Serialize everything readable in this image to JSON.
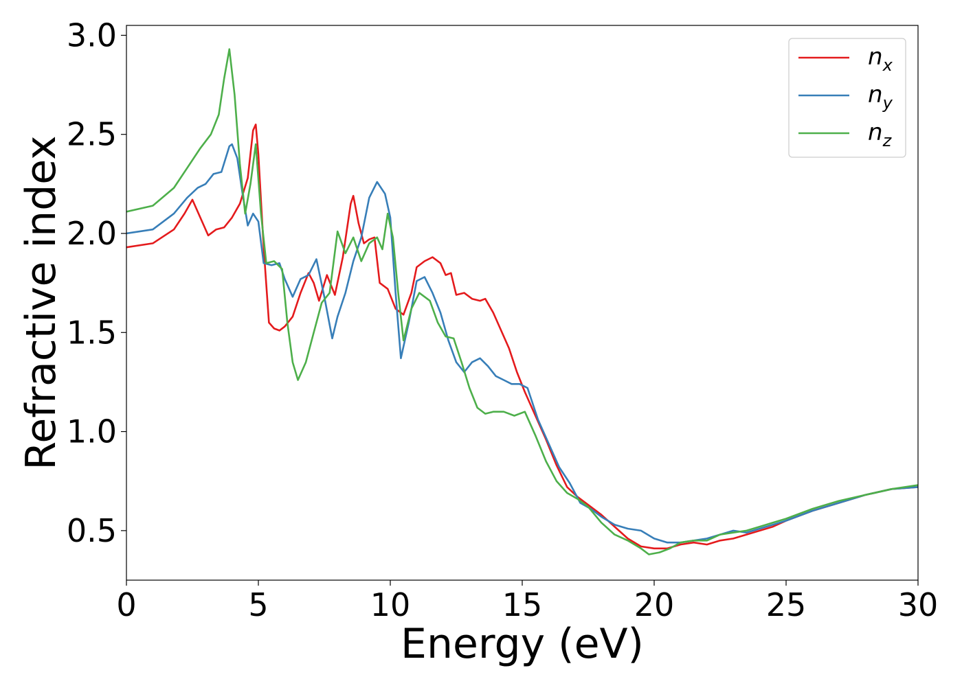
{
  "chart_data": {
    "type": "line",
    "title": "",
    "xlabel": "Energy (eV)",
    "ylabel": "Refractive index",
    "xlim": [
      0,
      30
    ],
    "ylim": [
      0.25,
      3.05
    ],
    "xticks": [
      0,
      5,
      10,
      15,
      20,
      25,
      30
    ],
    "yticks": [
      0.5,
      1.0,
      1.5,
      2.0,
      2.5,
      3.0
    ],
    "xtick_labels": [
      "0",
      "5",
      "10",
      "15",
      "20",
      "25",
      "30"
    ],
    "ytick_labels": [
      "0.5",
      "1.0",
      "1.5",
      "2.0",
      "2.5",
      "3.0"
    ],
    "grid": false,
    "legend_position": "top-right",
    "series": [
      {
        "name": "n",
        "subscript": "x",
        "color": "#e41a1c",
        "points": [
          [
            0,
            1.93
          ],
          [
            1,
            1.95
          ],
          [
            1.8,
            2.02
          ],
          [
            2.2,
            2.1
          ],
          [
            2.5,
            2.17
          ],
          [
            2.8,
            2.08
          ],
          [
            3.1,
            1.99
          ],
          [
            3.4,
            2.02
          ],
          [
            3.7,
            2.03
          ],
          [
            4.0,
            2.08
          ],
          [
            4.3,
            2.15
          ],
          [
            4.6,
            2.28
          ],
          [
            4.8,
            2.52
          ],
          [
            4.9,
            2.55
          ],
          [
            5.0,
            2.4
          ],
          [
            5.2,
            1.93
          ],
          [
            5.4,
            1.55
          ],
          [
            5.6,
            1.52
          ],
          [
            5.8,
            1.51
          ],
          [
            6.0,
            1.53
          ],
          [
            6.3,
            1.58
          ],
          [
            6.6,
            1.7
          ],
          [
            6.9,
            1.8
          ],
          [
            7.1,
            1.75
          ],
          [
            7.3,
            1.66
          ],
          [
            7.6,
            1.79
          ],
          [
            7.9,
            1.69
          ],
          [
            8.2,
            1.88
          ],
          [
            8.5,
            2.15
          ],
          [
            8.6,
            2.19
          ],
          [
            8.8,
            2.05
          ],
          [
            9.0,
            1.95
          ],
          [
            9.2,
            1.97
          ],
          [
            9.4,
            1.98
          ],
          [
            9.6,
            1.75
          ],
          [
            9.9,
            1.72
          ],
          [
            10.2,
            1.62
          ],
          [
            10.5,
            1.59
          ],
          [
            10.8,
            1.7
          ],
          [
            11.0,
            1.83
          ],
          [
            11.3,
            1.86
          ],
          [
            11.6,
            1.88
          ],
          [
            11.9,
            1.85
          ],
          [
            12.1,
            1.79
          ],
          [
            12.3,
            1.8
          ],
          [
            12.5,
            1.69
          ],
          [
            12.8,
            1.7
          ],
          [
            13.1,
            1.67
          ],
          [
            13.4,
            1.66
          ],
          [
            13.6,
            1.67
          ],
          [
            13.9,
            1.6
          ],
          [
            14.2,
            1.51
          ],
          [
            14.5,
            1.42
          ],
          [
            14.8,
            1.3
          ],
          [
            15.1,
            1.2
          ],
          [
            15.5,
            1.08
          ],
          [
            15.9,
            0.96
          ],
          [
            16.3,
            0.83
          ],
          [
            16.7,
            0.72
          ],
          [
            17.1,
            0.67
          ],
          [
            17.5,
            0.63
          ],
          [
            18.0,
            0.58
          ],
          [
            18.5,
            0.52
          ],
          [
            19.0,
            0.46
          ],
          [
            19.5,
            0.42
          ],
          [
            20.0,
            0.41
          ],
          [
            20.5,
            0.41
          ],
          [
            21.0,
            0.43
          ],
          [
            21.5,
            0.44
          ],
          [
            22.0,
            0.43
          ],
          [
            22.5,
            0.45
          ],
          [
            23.0,
            0.46
          ],
          [
            23.5,
            0.48
          ],
          [
            24.0,
            0.5
          ],
          [
            24.5,
            0.52
          ],
          [
            25.0,
            0.55
          ],
          [
            26.0,
            0.6
          ],
          [
            27.0,
            0.64
          ],
          [
            28.0,
            0.68
          ],
          [
            29.0,
            0.71
          ],
          [
            30.0,
            0.72
          ]
        ]
      },
      {
        "name": "n",
        "subscript": "y",
        "color": "#377eb8",
        "points": [
          [
            0,
            2.0
          ],
          [
            1,
            2.02
          ],
          [
            1.8,
            2.1
          ],
          [
            2.3,
            2.18
          ],
          [
            2.7,
            2.23
          ],
          [
            3.0,
            2.25
          ],
          [
            3.3,
            2.3
          ],
          [
            3.6,
            2.31
          ],
          [
            3.9,
            2.44
          ],
          [
            4.0,
            2.45
          ],
          [
            4.2,
            2.38
          ],
          [
            4.4,
            2.2
          ],
          [
            4.6,
            2.04
          ],
          [
            4.8,
            2.1
          ],
          [
            5.0,
            2.06
          ],
          [
            5.2,
            1.85
          ],
          [
            5.5,
            1.84
          ],
          [
            5.8,
            1.85
          ],
          [
            6.0,
            1.77
          ],
          [
            6.3,
            1.68
          ],
          [
            6.6,
            1.77
          ],
          [
            6.9,
            1.79
          ],
          [
            7.2,
            1.87
          ],
          [
            7.5,
            1.68
          ],
          [
            7.8,
            1.47
          ],
          [
            8.0,
            1.58
          ],
          [
            8.3,
            1.7
          ],
          [
            8.6,
            1.86
          ],
          [
            8.9,
            1.98
          ],
          [
            9.2,
            2.18
          ],
          [
            9.5,
            2.26
          ],
          [
            9.8,
            2.2
          ],
          [
            10.0,
            2.08
          ],
          [
            10.2,
            1.7
          ],
          [
            10.4,
            1.37
          ],
          [
            10.7,
            1.55
          ],
          [
            11.0,
            1.76
          ],
          [
            11.3,
            1.78
          ],
          [
            11.6,
            1.7
          ],
          [
            11.9,
            1.6
          ],
          [
            12.2,
            1.46
          ],
          [
            12.5,
            1.35
          ],
          [
            12.8,
            1.3
          ],
          [
            13.1,
            1.35
          ],
          [
            13.4,
            1.37
          ],
          [
            13.7,
            1.33
          ],
          [
            14.0,
            1.28
          ],
          [
            14.3,
            1.26
          ],
          [
            14.6,
            1.24
          ],
          [
            14.9,
            1.24
          ],
          [
            15.2,
            1.22
          ],
          [
            15.6,
            1.06
          ],
          [
            16.0,
            0.94
          ],
          [
            16.4,
            0.82
          ],
          [
            16.8,
            0.74
          ],
          [
            17.2,
            0.64
          ],
          [
            17.6,
            0.61
          ],
          [
            18.0,
            0.57
          ],
          [
            18.5,
            0.53
          ],
          [
            19.0,
            0.51
          ],
          [
            19.5,
            0.5
          ],
          [
            20.0,
            0.46
          ],
          [
            20.5,
            0.44
          ],
          [
            21.0,
            0.44
          ],
          [
            21.5,
            0.45
          ],
          [
            22.0,
            0.46
          ],
          [
            22.5,
            0.48
          ],
          [
            23.0,
            0.5
          ],
          [
            23.5,
            0.49
          ],
          [
            24.0,
            0.51
          ],
          [
            24.5,
            0.53
          ],
          [
            25.0,
            0.55
          ],
          [
            26.0,
            0.6
          ],
          [
            27.0,
            0.64
          ],
          [
            28.0,
            0.68
          ],
          [
            29.0,
            0.71
          ],
          [
            30.0,
            0.72
          ]
        ]
      },
      {
        "name": "n",
        "subscript": "z",
        "color": "#4daf4a",
        "points": [
          [
            0,
            2.11
          ],
          [
            1,
            2.14
          ],
          [
            1.8,
            2.23
          ],
          [
            2.3,
            2.33
          ],
          [
            2.8,
            2.43
          ],
          [
            3.2,
            2.5
          ],
          [
            3.5,
            2.6
          ],
          [
            3.7,
            2.78
          ],
          [
            3.9,
            2.93
          ],
          [
            4.1,
            2.7
          ],
          [
            4.3,
            2.35
          ],
          [
            4.5,
            2.1
          ],
          [
            4.7,
            2.25
          ],
          [
            4.9,
            2.45
          ],
          [
            5.1,
            2.1
          ],
          [
            5.3,
            1.85
          ],
          [
            5.6,
            1.86
          ],
          [
            5.9,
            1.82
          ],
          [
            6.1,
            1.55
          ],
          [
            6.3,
            1.35
          ],
          [
            6.5,
            1.26
          ],
          [
            6.8,
            1.35
          ],
          [
            7.1,
            1.5
          ],
          [
            7.4,
            1.65
          ],
          [
            7.7,
            1.7
          ],
          [
            8.0,
            2.01
          ],
          [
            8.3,
            1.9
          ],
          [
            8.6,
            1.98
          ],
          [
            8.9,
            1.86
          ],
          [
            9.2,
            1.95
          ],
          [
            9.5,
            1.98
          ],
          [
            9.7,
            1.92
          ],
          [
            9.9,
            2.1
          ],
          [
            10.1,
            1.98
          ],
          [
            10.3,
            1.7
          ],
          [
            10.5,
            1.46
          ],
          [
            10.8,
            1.62
          ],
          [
            11.1,
            1.7
          ],
          [
            11.5,
            1.66
          ],
          [
            11.8,
            1.55
          ],
          [
            12.1,
            1.48
          ],
          [
            12.4,
            1.47
          ],
          [
            12.7,
            1.35
          ],
          [
            13.0,
            1.22
          ],
          [
            13.3,
            1.12
          ],
          [
            13.6,
            1.09
          ],
          [
            13.9,
            1.1
          ],
          [
            14.3,
            1.1
          ],
          [
            14.7,
            1.08
          ],
          [
            15.1,
            1.1
          ],
          [
            15.5,
            0.98
          ],
          [
            15.9,
            0.85
          ],
          [
            16.3,
            0.75
          ],
          [
            16.7,
            0.69
          ],
          [
            17.1,
            0.66
          ],
          [
            17.5,
            0.62
          ],
          [
            18.0,
            0.54
          ],
          [
            18.5,
            0.48
          ],
          [
            19.0,
            0.45
          ],
          [
            19.5,
            0.41
          ],
          [
            19.8,
            0.38
          ],
          [
            20.2,
            0.39
          ],
          [
            20.6,
            0.41
          ],
          [
            21.0,
            0.44
          ],
          [
            21.5,
            0.45
          ],
          [
            22.0,
            0.45
          ],
          [
            22.5,
            0.48
          ],
          [
            23.0,
            0.49
          ],
          [
            23.5,
            0.5
          ],
          [
            24.0,
            0.52
          ],
          [
            24.5,
            0.54
          ],
          [
            25.0,
            0.56
          ],
          [
            26.0,
            0.61
          ],
          [
            27.0,
            0.65
          ],
          [
            28.0,
            0.68
          ],
          [
            29.0,
            0.71
          ],
          [
            30.0,
            0.73
          ]
        ]
      }
    ]
  }
}
